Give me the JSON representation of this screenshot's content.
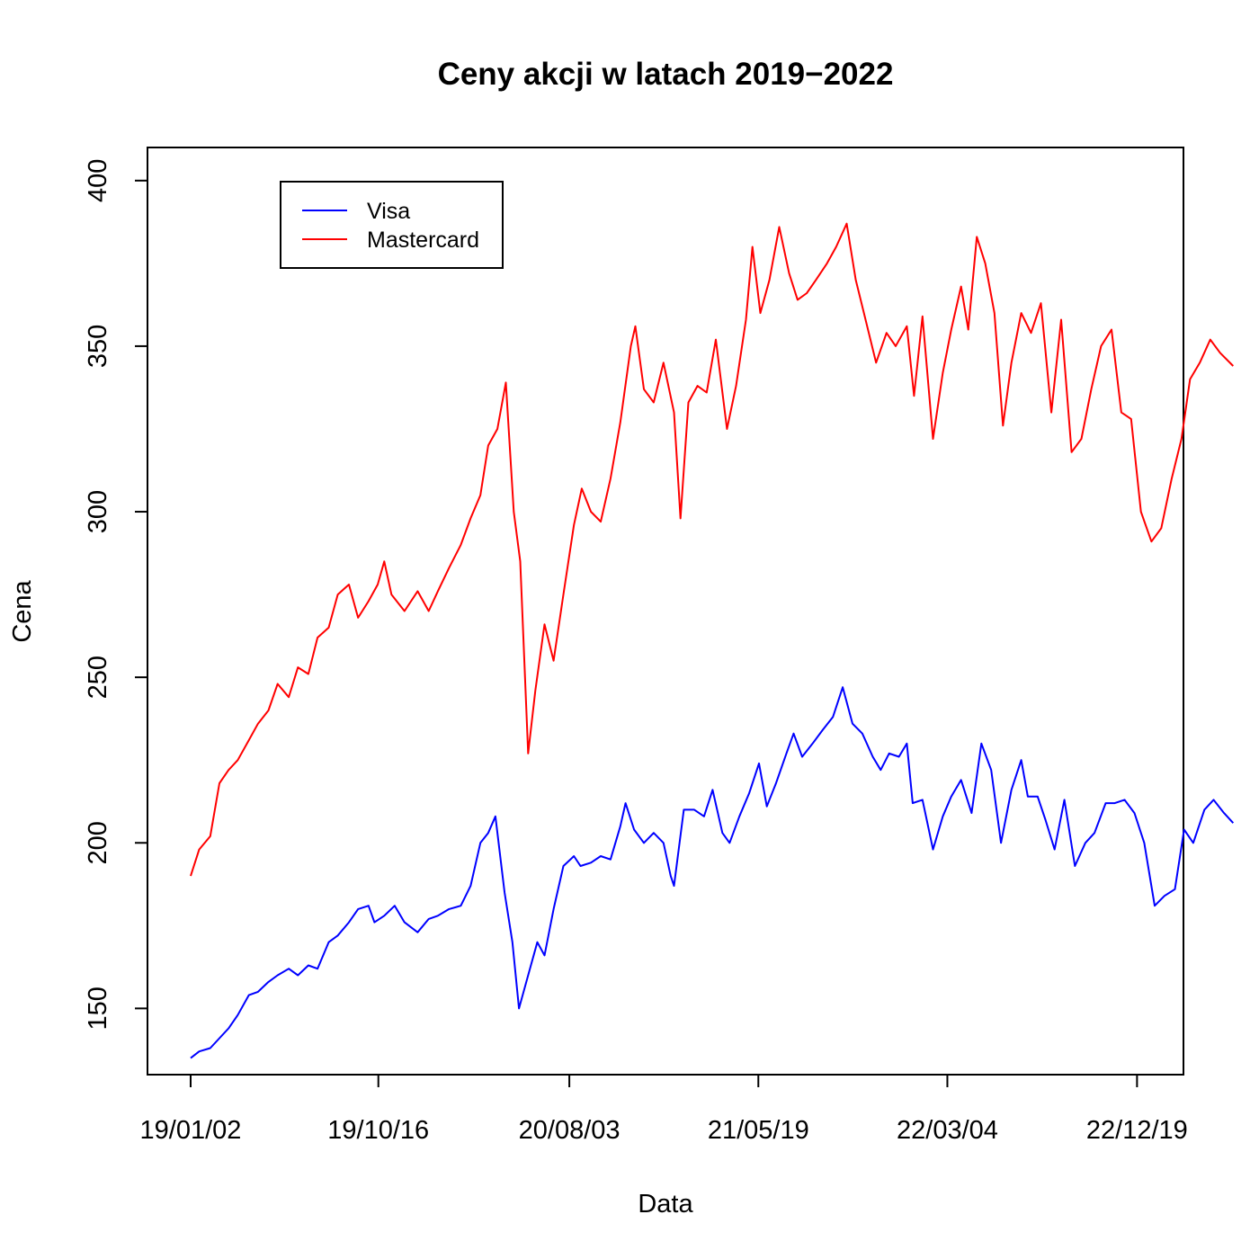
{
  "chart_data": {
    "type": "line",
    "title": "Ceny akcji w latach 2019−2022",
    "xlabel": "Data",
    "ylabel": "Cena",
    "ylim": [
      130,
      410
    ],
    "yticks": [
      150,
      200,
      250,
      300,
      350,
      400
    ],
    "xlim": [
      "2018-10-28",
      "2023-02-28"
    ],
    "xticks": [
      {
        "date": "2019-01-02",
        "label": "19/01/02"
      },
      {
        "date": "2019-10-16",
        "label": "19/10/16"
      },
      {
        "date": "2020-08-03",
        "label": "20/08/03"
      },
      {
        "date": "2021-05-19",
        "label": "21/05/19"
      },
      {
        "date": "2022-03-04",
        "label": "22/03/04"
      },
      {
        "date": "2022-12-19",
        "label": "22/12/19"
      }
    ],
    "grid": false,
    "legend": {
      "position": "top-left"
    },
    "series": [
      {
        "name": "Visa",
        "color": "#0000ff",
        "points": [
          [
            "2019-01-02",
            135
          ],
          [
            "2019-01-15",
            137
          ],
          [
            "2019-02-01",
            138
          ],
          [
            "2019-02-15",
            141
          ],
          [
            "2019-03-01",
            144
          ],
          [
            "2019-03-15",
            148
          ],
          [
            "2019-04-01",
            154
          ],
          [
            "2019-04-15",
            155
          ],
          [
            "2019-05-01",
            158
          ],
          [
            "2019-05-15",
            160
          ],
          [
            "2019-06-01",
            162
          ],
          [
            "2019-06-15",
            160
          ],
          [
            "2019-07-01",
            163
          ],
          [
            "2019-07-15",
            162
          ],
          [
            "2019-08-01",
            170
          ],
          [
            "2019-08-15",
            172
          ],
          [
            "2019-09-01",
            176
          ],
          [
            "2019-09-15",
            180
          ],
          [
            "2019-10-01",
            181
          ],
          [
            "2019-10-10",
            176
          ],
          [
            "2019-10-25",
            178
          ],
          [
            "2019-11-10",
            181
          ],
          [
            "2019-11-25",
            176
          ],
          [
            "2019-12-15",
            173
          ],
          [
            "2020-01-01",
            177
          ],
          [
            "2020-01-15",
            178
          ],
          [
            "2020-02-01",
            180
          ],
          [
            "2020-02-19",
            181
          ],
          [
            "2020-03-05",
            187
          ],
          [
            "2020-03-20",
            200
          ],
          [
            "2020-04-01",
            203
          ],
          [
            "2020-04-12",
            208
          ],
          [
            "2020-04-26",
            185
          ],
          [
            "2020-05-08",
            170
          ],
          [
            "2020-05-18",
            150
          ],
          [
            "2020-06-01",
            160
          ],
          [
            "2020-06-15",
            170
          ],
          [
            "2020-06-26",
            166
          ],
          [
            "2020-07-10",
            180
          ],
          [
            "2020-07-25",
            193
          ],
          [
            "2020-08-10",
            196
          ],
          [
            "2020-08-20",
            193
          ],
          [
            "2020-09-05",
            194
          ],
          [
            "2020-09-20",
            196
          ],
          [
            "2020-10-05",
            195
          ],
          [
            "2020-10-20",
            205
          ],
          [
            "2020-10-28",
            212
          ],
          [
            "2020-11-10",
            204
          ],
          [
            "2020-11-25",
            200
          ],
          [
            "2020-12-10",
            203
          ],
          [
            "2020-12-25",
            200
          ],
          [
            "2021-01-05",
            190
          ],
          [
            "2021-01-10",
            187
          ],
          [
            "2021-01-25",
            210
          ],
          [
            "2021-02-10",
            210
          ],
          [
            "2021-02-25",
            208
          ],
          [
            "2021-03-10",
            216
          ],
          [
            "2021-03-25",
            203
          ],
          [
            "2021-04-05",
            200
          ],
          [
            "2021-04-20",
            208
          ],
          [
            "2021-05-05",
            215
          ],
          [
            "2021-05-20",
            224
          ],
          [
            "2021-06-01",
            211
          ],
          [
            "2021-06-15",
            218
          ],
          [
            "2021-07-01",
            227
          ],
          [
            "2021-07-12",
            233
          ],
          [
            "2021-07-25",
            226
          ],
          [
            "2021-08-10",
            230
          ],
          [
            "2021-08-25",
            234
          ],
          [
            "2021-09-10",
            238
          ],
          [
            "2021-09-25",
            247
          ],
          [
            "2021-10-10",
            236
          ],
          [
            "2021-10-25",
            233
          ],
          [
            "2021-11-10",
            226
          ],
          [
            "2021-11-22",
            222
          ],
          [
            "2021-12-05",
            227
          ],
          [
            "2021-12-20",
            226
          ],
          [
            "2022-01-01",
            230
          ],
          [
            "2022-01-10",
            212
          ],
          [
            "2022-01-25",
            213
          ],
          [
            "2022-02-10",
            198
          ],
          [
            "2022-02-25",
            208
          ],
          [
            "2022-03-10",
            214
          ],
          [
            "2022-03-25",
            219
          ],
          [
            "2022-04-10",
            209
          ],
          [
            "2022-04-25",
            230
          ],
          [
            "2022-05-10",
            222
          ],
          [
            "2022-05-25",
            200
          ],
          [
            "2022-06-10",
            216
          ],
          [
            "2022-06-25",
            225
          ],
          [
            "2022-07-05",
            214
          ],
          [
            "2022-07-20",
            214
          ],
          [
            "2022-08-01",
            207
          ],
          [
            "2022-08-15",
            198
          ],
          [
            "2022-08-30",
            213
          ],
          [
            "2022-09-15",
            193
          ],
          [
            "2022-10-01",
            200
          ],
          [
            "2022-10-15",
            203
          ],
          [
            "2022-11-01",
            212
          ],
          [
            "2022-11-15",
            212
          ],
          [
            "2022-11-30",
            213
          ],
          [
            "2022-12-15",
            209
          ],
          [
            "2022-12-30",
            200
          ],
          [
            "2023-01-15",
            181
          ],
          [
            "2023-01-30",
            184
          ],
          [
            "2023-02-15",
            186
          ],
          [
            "2023-03-01",
            204
          ],
          [
            "2023-03-15",
            200
          ],
          [
            "2023-04-01",
            210
          ],
          [
            "2023-04-15",
            213
          ],
          [
            "2023-05-01",
            209
          ],
          [
            "2023-05-15",
            206
          ]
        ]
      },
      {
        "name": "Mastercard",
        "color": "#ff0000",
        "points": [
          [
            "2019-01-02",
            190
          ],
          [
            "2019-01-15",
            198
          ],
          [
            "2019-02-01",
            202
          ],
          [
            "2019-02-15",
            218
          ],
          [
            "2019-03-01",
            222
          ],
          [
            "2019-03-15",
            225
          ],
          [
            "2019-04-01",
            231
          ],
          [
            "2019-04-15",
            236
          ],
          [
            "2019-05-01",
            240
          ],
          [
            "2019-05-15",
            248
          ],
          [
            "2019-06-01",
            244
          ],
          [
            "2019-06-15",
            253
          ],
          [
            "2019-07-01",
            251
          ],
          [
            "2019-07-15",
            262
          ],
          [
            "2019-08-01",
            265
          ],
          [
            "2019-08-15",
            275
          ],
          [
            "2019-09-01",
            278
          ],
          [
            "2019-09-15",
            268
          ],
          [
            "2019-10-01",
            273
          ],
          [
            "2019-10-15",
            278
          ],
          [
            "2019-10-25",
            285
          ],
          [
            "2019-11-05",
            275
          ],
          [
            "2019-11-25",
            270
          ],
          [
            "2019-12-15",
            276
          ],
          [
            "2020-01-01",
            270
          ],
          [
            "2020-01-15",
            276
          ],
          [
            "2020-02-01",
            283
          ],
          [
            "2020-02-19",
            290
          ],
          [
            "2020-03-05",
            298
          ],
          [
            "2020-03-20",
            305
          ],
          [
            "2020-04-01",
            320
          ],
          [
            "2020-04-15",
            325
          ],
          [
            "2020-04-28",
            339
          ],
          [
            "2020-05-10",
            300
          ],
          [
            "2020-05-20",
            285
          ],
          [
            "2020-06-01",
            227
          ],
          [
            "2020-06-12",
            246
          ],
          [
            "2020-06-26",
            266
          ],
          [
            "2020-07-10",
            255
          ],
          [
            "2020-07-25",
            275
          ],
          [
            "2020-08-10",
            296
          ],
          [
            "2020-08-22",
            307
          ],
          [
            "2020-09-05",
            300
          ],
          [
            "2020-09-20",
            297
          ],
          [
            "2020-10-05",
            310
          ],
          [
            "2020-10-20",
            327
          ],
          [
            "2020-11-05",
            350
          ],
          [
            "2020-11-12",
            356
          ],
          [
            "2020-11-25",
            337
          ],
          [
            "2020-12-10",
            333
          ],
          [
            "2020-12-25",
            345
          ],
          [
            "2021-01-10",
            330
          ],
          [
            "2021-01-20",
            298
          ],
          [
            "2021-02-01",
            333
          ],
          [
            "2021-02-15",
            338
          ],
          [
            "2021-03-01",
            336
          ],
          [
            "2021-03-15",
            352
          ],
          [
            "2021-04-01",
            325
          ],
          [
            "2021-04-15",
            338
          ],
          [
            "2021-04-30",
            358
          ],
          [
            "2021-05-10",
            380
          ],
          [
            "2021-05-22",
            360
          ],
          [
            "2021-06-05",
            370
          ],
          [
            "2021-06-20",
            386
          ],
          [
            "2021-07-05",
            372
          ],
          [
            "2021-07-18",
            364
          ],
          [
            "2021-08-01",
            366
          ],
          [
            "2021-08-15",
            370
          ],
          [
            "2021-09-01",
            375
          ],
          [
            "2021-09-15",
            380
          ],
          [
            "2021-10-01",
            387
          ],
          [
            "2021-10-15",
            370
          ],
          [
            "2021-10-30",
            358
          ],
          [
            "2021-11-15",
            345
          ],
          [
            "2021-12-01",
            354
          ],
          [
            "2021-12-15",
            350
          ],
          [
            "2022-01-01",
            356
          ],
          [
            "2022-01-12",
            335
          ],
          [
            "2022-01-25",
            359
          ],
          [
            "2022-02-10",
            322
          ],
          [
            "2022-02-25",
            342
          ],
          [
            "2022-03-10",
            355
          ],
          [
            "2022-03-25",
            368
          ],
          [
            "2022-04-05",
            355
          ],
          [
            "2022-04-18",
            383
          ],
          [
            "2022-05-01",
            375
          ],
          [
            "2022-05-15",
            360
          ],
          [
            "2022-05-28",
            326
          ],
          [
            "2022-06-10",
            345
          ],
          [
            "2022-06-25",
            360
          ],
          [
            "2022-07-10",
            354
          ],
          [
            "2022-07-25",
            363
          ],
          [
            "2022-08-10",
            330
          ],
          [
            "2022-08-25",
            358
          ],
          [
            "2022-09-10",
            318
          ],
          [
            "2022-09-25",
            322
          ],
          [
            "2022-10-10",
            337
          ],
          [
            "2022-10-25",
            350
          ],
          [
            "2022-11-10",
            355
          ],
          [
            "2022-11-25",
            330
          ],
          [
            "2022-12-10",
            328
          ],
          [
            "2022-12-25",
            300
          ],
          [
            "2023-01-10",
            291
          ],
          [
            "2023-01-25",
            295
          ],
          [
            "2023-02-10",
            310
          ],
          [
            "2023-02-25",
            322
          ],
          [
            "2023-03-10",
            340
          ],
          [
            "2023-03-25",
            345
          ],
          [
            "2023-04-10",
            352
          ],
          [
            "2023-04-25",
            348
          ],
          [
            "2023-05-15",
            344
          ]
        ]
      }
    ]
  }
}
